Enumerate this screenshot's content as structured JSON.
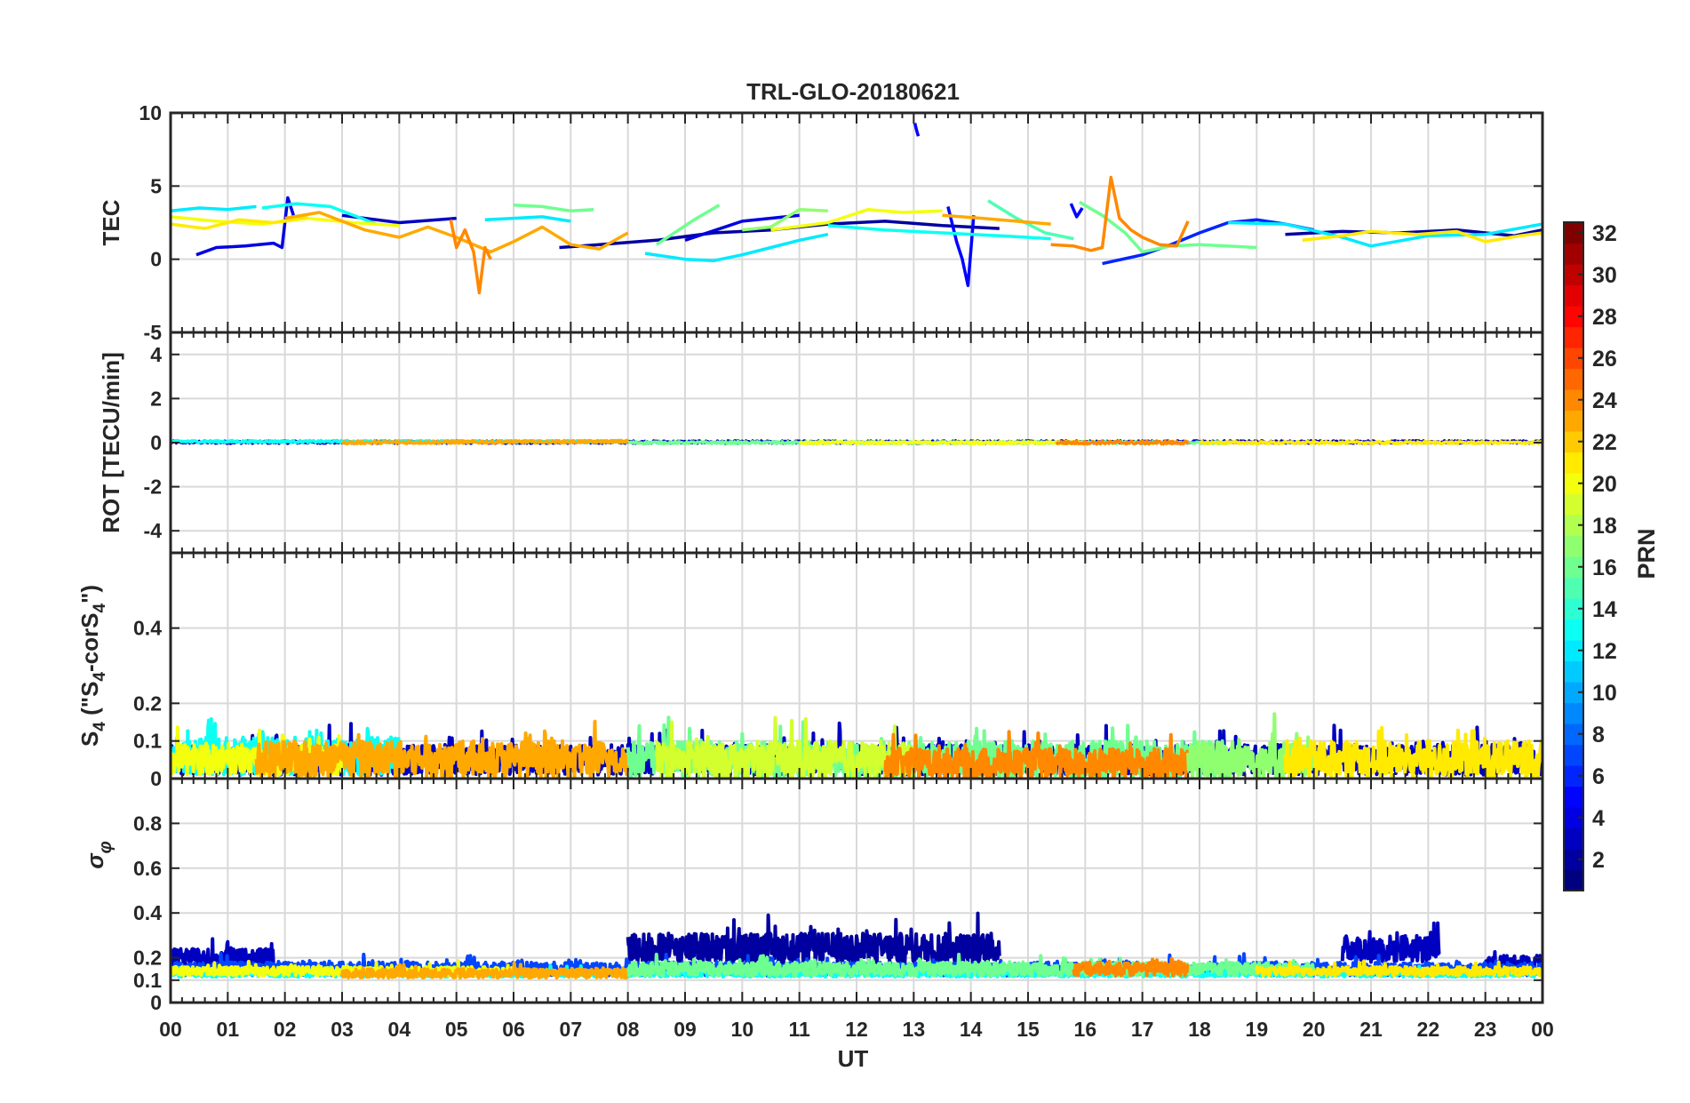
{
  "chart_data": {
    "type": "line",
    "title": "TRL-GLO-20180621",
    "xlabel": "UT",
    "xlim": [
      0,
      24
    ],
    "x_ticks": [
      "00",
      "01",
      "02",
      "03",
      "04",
      "05",
      "06",
      "07",
      "08",
      "09",
      "10",
      "11",
      "12",
      "13",
      "14",
      "15",
      "16",
      "17",
      "18",
      "19",
      "20",
      "21",
      "22",
      "23",
      "00"
    ],
    "grid": true,
    "panels": [
      {
        "id": "tec",
        "ylabel": "TEC",
        "ylim": [
          -5,
          10
        ],
        "y_ticks": [
          "-5",
          "0",
          "5",
          "10"
        ],
        "y_tick_values": [
          -5,
          0,
          5,
          10
        ],
        "series": [
          {
            "prn": 4,
            "x": [
              0.45,
              0.8,
              1.3,
              1.8,
              1.95,
              2.05,
              2.15
            ],
            "y": [
              0.3,
              0.8,
              0.9,
              1.1,
              0.8,
              4.2,
              3.0
            ]
          },
          {
            "prn": 3,
            "x": [
              3.0,
              4.0,
              5.0
            ],
            "y": [
              3.0,
              2.5,
              2.8
            ]
          },
          {
            "prn": 2,
            "x": [
              6.8,
              7.5,
              8.5,
              9.5,
              10.5,
              11.5,
              12.5,
              13.5,
              14.5
            ],
            "y": [
              0.8,
              1.0,
              1.3,
              1.8,
              2.0,
              2.4,
              2.6,
              2.3,
              2.1
            ]
          },
          {
            "prn": 4,
            "x": [
              9.0,
              10.0,
              11.0
            ],
            "y": [
              1.3,
              2.6,
              3.0
            ]
          },
          {
            "prn": 5,
            "x": [
              13.6,
              13.75,
              13.85,
              13.95,
              14.05
            ],
            "y": [
              3.6,
              1.2,
              0.0,
              -1.8,
              3.0
            ]
          },
          {
            "prn": 5,
            "x": [
              13.02,
              13.05,
              13.08
            ],
            "y": [
              9.3,
              8.8,
              8.4
            ]
          },
          {
            "prn": 5,
            "x": [
              15.75,
              15.85,
              15.95
            ],
            "y": [
              3.8,
              2.9,
              3.5
            ]
          },
          {
            "prn": 6,
            "x": [
              16.3,
              17.0,
              17.5,
              18.0,
              18.5,
              19.0,
              19.5,
              20.0
            ],
            "y": [
              -0.3,
              0.3,
              1.0,
              1.8,
              2.5,
              2.7,
              2.4,
              2.0
            ]
          },
          {
            "prn": 2,
            "x": [
              19.5,
              20.5,
              21.5,
              22.5,
              23.5,
              24.0
            ],
            "y": [
              1.7,
              1.9,
              1.8,
              2.0,
              1.6,
              2.0
            ]
          },
          {
            "prn": 12,
            "x": [
              0.0,
              0.5,
              1.0,
              1.5
            ],
            "y": [
              3.3,
              3.5,
              3.4,
              3.6
            ]
          },
          {
            "prn": 13,
            "x": [
              1.6,
              2.2,
              2.8,
              3.2,
              3.6
            ],
            "y": [
              3.5,
              3.8,
              3.6,
              3.0,
              2.4
            ]
          },
          {
            "prn": 12,
            "x": [
              5.5,
              6.0,
              6.5,
              7.0
            ],
            "y": [
              2.7,
              2.8,
              2.9,
              2.6
            ]
          },
          {
            "prn": 12,
            "x": [
              8.3,
              9.0,
              9.5,
              10.0,
              10.5,
              11.0,
              11.5
            ],
            "y": [
              0.4,
              0.0,
              -0.1,
              0.3,
              0.8,
              1.3,
              1.7
            ]
          },
          {
            "prn": 13,
            "x": [
              11.5,
              12.5,
              13.5,
              14.5,
              15.0,
              15.4
            ],
            "y": [
              2.3,
              2.0,
              1.8,
              1.6,
              1.5,
              1.4
            ]
          },
          {
            "prn": 12,
            "x": [
              18.5,
              19.5,
              20.5,
              21.0,
              22.0,
              23.0,
              24.0
            ],
            "y": [
              2.5,
              2.4,
              1.5,
              0.9,
              1.6,
              1.7,
              2.4
            ]
          },
          {
            "prn": 16,
            "x": [
              6.0,
              6.5,
              7.0,
              7.4
            ],
            "y": [
              3.7,
              3.6,
              3.3,
              3.4
            ]
          },
          {
            "prn": 16,
            "x": [
              8.5,
              9.2,
              9.6
            ],
            "y": [
              1.0,
              2.8,
              3.7
            ]
          },
          {
            "prn": 15,
            "x": [
              14.3,
              14.8,
              15.3,
              15.8
            ],
            "y": [
              4.0,
              2.8,
              1.8,
              1.4
            ]
          },
          {
            "prn": 16,
            "x": [
              15.9,
              16.3,
              16.7,
              17.0,
              17.5,
              18.0,
              19.0
            ],
            "y": [
              3.9,
              3.0,
              1.8,
              0.5,
              0.9,
              1.0,
              0.8
            ]
          },
          {
            "prn": 17,
            "x": [
              10.0,
              10.5,
              11.0,
              11.5
            ],
            "y": [
              2.0,
              2.2,
              3.4,
              3.3
            ]
          },
          {
            "prn": 20,
            "x": [
              0.0,
              0.8,
              1.6,
              2.4,
              3.2,
              4.0
            ],
            "y": [
              2.9,
              2.6,
              2.4,
              2.8,
              2.5,
              2.3
            ]
          },
          {
            "prn": 21,
            "x": [
              0.0,
              0.6,
              1.2,
              1.8,
              2.4
            ],
            "y": [
              2.4,
              2.1,
              2.7,
              2.5,
              2.9
            ]
          },
          {
            "prn": 20,
            "x": [
              10.5,
              11.5,
              12.2,
              12.8,
              13.5
            ],
            "y": [
              2.0,
              2.5,
              3.4,
              3.2,
              3.3
            ]
          },
          {
            "prn": 21,
            "x": [
              19.8,
              20.5,
              21.0,
              21.8,
              22.5,
              23.0,
              23.6,
              24.0
            ],
            "y": [
              1.3,
              1.6,
              1.9,
              1.7,
              1.9,
              1.2,
              1.6,
              1.8
            ]
          },
          {
            "prn": 23,
            "x": [
              2.0,
              2.6,
              3.0,
              3.4,
              4.0,
              4.5,
              5.0,
              5.6,
              6.0,
              6.5,
              7.0,
              7.5,
              8.0
            ],
            "y": [
              2.8,
              3.2,
              2.6,
              2.0,
              1.5,
              2.2,
              1.5,
              0.5,
              1.2,
              2.2,
              1.0,
              0.7,
              1.8
            ]
          },
          {
            "prn": 24,
            "x": [
              4.9,
              5.0,
              5.15,
              5.3,
              5.4,
              5.5,
              5.6
            ],
            "y": [
              2.7,
              0.8,
              2.0,
              0.5,
              -2.3,
              0.8,
              0.0
            ]
          },
          {
            "prn": 23,
            "x": [
              13.5,
              14.2,
              14.8,
              15.4
            ],
            "y": [
              3.0,
              2.8,
              2.6,
              2.4
            ]
          },
          {
            "prn": 24,
            "x": [
              15.4,
              15.8,
              16.1,
              16.3,
              16.45,
              16.6,
              16.8,
              17.0,
              17.3,
              17.6,
              17.8
            ],
            "y": [
              1.0,
              0.9,
              0.6,
              0.8,
              5.6,
              2.8,
              2.0,
              1.5,
              1.0,
              0.9,
              2.6
            ]
          }
        ]
      },
      {
        "id": "rot",
        "ylabel": "ROT [TECU/min]",
        "ylim": [
          -5,
          5
        ],
        "y_ticks": [
          "-4",
          "-2",
          "0",
          "2",
          "4"
        ],
        "y_tick_values": [
          -4,
          -2,
          0,
          2,
          4
        ],
        "series": [
          {
            "prn": 3,
            "x": [
              0,
              24
            ],
            "y": [
              0.02,
              0.03
            ],
            "noise": 0.06
          },
          {
            "prn": 13,
            "x": [
              0,
              8
            ],
            "y": [
              0.05,
              0.05
            ],
            "noise": 0.05
          },
          {
            "prn": 23,
            "x": [
              3.0,
              8.0
            ],
            "y": [
              0.0,
              0.05
            ],
            "noise": 0.06
          },
          {
            "prn": 16,
            "x": [
              8.0,
              18.5
            ],
            "y": [
              0.0,
              0.0
            ],
            "noise": 0.05
          },
          {
            "prn": 20,
            "x": [
              11.0,
              16.0
            ],
            "y": [
              0.0,
              0.0
            ],
            "noise": 0.05
          },
          {
            "prn": 24,
            "x": [
              15.5,
              17.8
            ],
            "y": [
              0.0,
              0.0
            ],
            "noise": 0.07
          },
          {
            "prn": 21,
            "x": [
              18.0,
              24.0
            ],
            "y": [
              0.0,
              0.0
            ],
            "noise": 0.05
          }
        ]
      },
      {
        "id": "s4",
        "ylabel_main": "S",
        "ylabel_sub1": "4",
        "ylabel_mid": " (\"S",
        "ylabel_sub2": "4",
        "ylabel_mid2": "-corS",
        "ylabel_sub3": "4",
        "ylabel_end": "\")",
        "ylim": [
          0,
          0.6
        ],
        "y_ticks": [
          "0",
          "0.1",
          "0.2",
          "0.4"
        ],
        "y_tick_values": [
          0,
          0.1,
          0.2,
          0.4
        ],
        "bands": [
          {
            "prn": 3,
            "x0": 0.0,
            "x1": 24.0,
            "base": 0.05,
            "spread": 0.04
          },
          {
            "prn": 13,
            "x0": 0.0,
            "x1": 4.0,
            "base": 0.06,
            "spread": 0.05
          },
          {
            "prn": 20,
            "x0": 0.0,
            "x1": 3.0,
            "base": 0.05,
            "spread": 0.04
          },
          {
            "prn": 23,
            "x0": 1.5,
            "x1": 8.0,
            "base": 0.05,
            "spread": 0.05
          },
          {
            "prn": 16,
            "x0": 8.0,
            "x1": 18.5,
            "base": 0.05,
            "spread": 0.05
          },
          {
            "prn": 19,
            "x0": 8.5,
            "x1": 13.0,
            "base": 0.05,
            "spread": 0.05
          },
          {
            "prn": 24,
            "x0": 12.5,
            "x1": 17.8,
            "base": 0.04,
            "spread": 0.04
          },
          {
            "prn": 17,
            "x0": 17.8,
            "x1": 20.0,
            "base": 0.05,
            "spread": 0.05
          },
          {
            "prn": 21,
            "x0": 19.5,
            "x1": 24.0,
            "base": 0.05,
            "spread": 0.05
          }
        ]
      },
      {
        "id": "sigma",
        "ylabel": "σ φ",
        "ylim": [
          0,
          1
        ],
        "y_ticks": [
          "0",
          "0.1",
          "0.2",
          "0.4",
          "0.6",
          "0.8"
        ],
        "y_tick_values": [
          0,
          0.1,
          0.2,
          0.4,
          0.6,
          0.8
        ],
        "bands": [
          {
            "prn": 3,
            "x0": 0.0,
            "x1": 1.8,
            "base": 0.2,
            "spread": 0.04
          },
          {
            "prn": 2,
            "x0": 8.0,
            "x1": 14.5,
            "base": 0.24,
            "spread": 0.07
          },
          {
            "prn": 3,
            "x0": 20.5,
            "x1": 22.2,
            "base": 0.24,
            "spread": 0.06
          },
          {
            "prn": 3,
            "x0": 23.0,
            "x1": 24.0,
            "base": 0.18,
            "spread": 0.03
          },
          {
            "prn": 7,
            "x0": 0.0,
            "x1": 24.0,
            "base": 0.15,
            "spread": 0.03
          },
          {
            "prn": 13,
            "x0": 0.0,
            "x1": 24.0,
            "base": 0.13,
            "spread": 0.015
          },
          {
            "prn": 20,
            "x0": 0.0,
            "x1": 6.0,
            "base": 0.14,
            "spread": 0.02
          },
          {
            "prn": 23,
            "x0": 3.0,
            "x1": 8.0,
            "base": 0.13,
            "spread": 0.02
          },
          {
            "prn": 16,
            "x0": 8.0,
            "x1": 20.0,
            "base": 0.15,
            "spread": 0.03
          },
          {
            "prn": 24,
            "x0": 15.8,
            "x1": 17.8,
            "base": 0.15,
            "spread": 0.03
          },
          {
            "prn": 21,
            "x0": 19.0,
            "x1": 24.0,
            "base": 0.14,
            "spread": 0.02
          }
        ]
      }
    ],
    "colorbar": {
      "label": "PRN",
      "range": [
        1,
        32
      ],
      "ticks": [
        "2",
        "4",
        "6",
        "8",
        "10",
        "12",
        "14",
        "16",
        "18",
        "20",
        "22",
        "24",
        "26",
        "28",
        "30",
        "32"
      ],
      "tick_values": [
        2,
        4,
        6,
        8,
        10,
        12,
        14,
        16,
        18,
        20,
        22,
        24,
        26,
        28,
        30,
        32
      ],
      "colormap": "jet"
    }
  }
}
